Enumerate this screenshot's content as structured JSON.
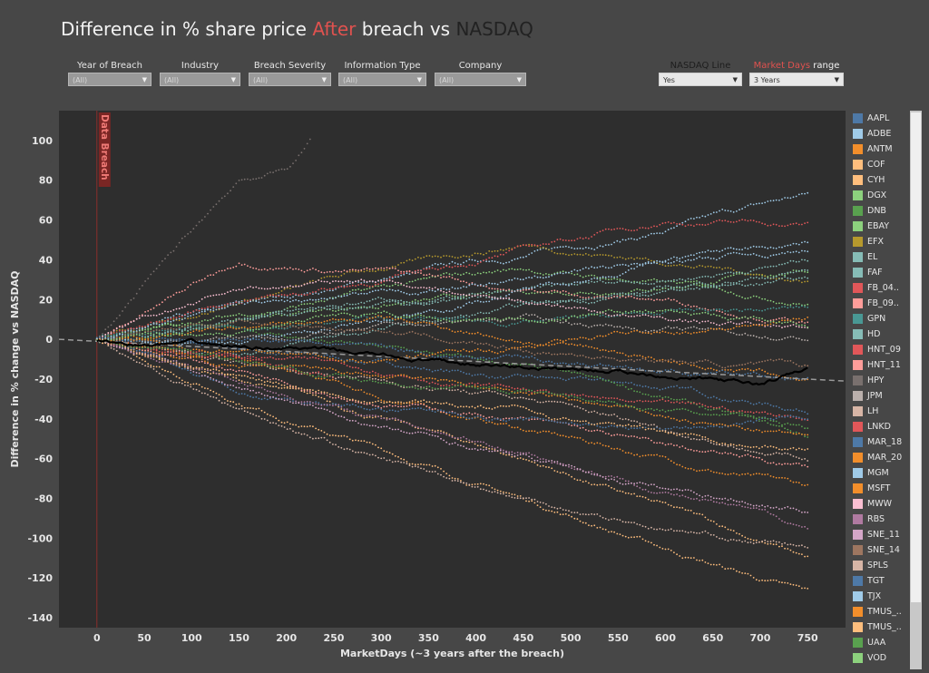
{
  "title": {
    "part1": "Difference in % share price",
    "part2": "After",
    "part3": "breach",
    "part4": "vs",
    "part5": "NASDAQ"
  },
  "filters": [
    {
      "label": "Year of Breach",
      "value": "(All)"
    },
    {
      "label": "Industry",
      "value": "(All)"
    },
    {
      "label": "Breach Severity",
      "value": "(All)"
    },
    {
      "label": "Information Type",
      "value": "(All)"
    },
    {
      "label": "Company",
      "value": "(All)"
    }
  ],
  "nasdaq_filter": {
    "label": "NASDAQ Line",
    "value": "Yes"
  },
  "range_filter": {
    "label_red": "Market Days",
    "label_white": " range",
    "value": "3 Years"
  },
  "colors": {
    "background": "#474747",
    "plot_bg": "#2e2e2e",
    "accent_red": "#e0524f",
    "nasdaq_line": "#000000",
    "trend_line": "#9a9a9a"
  },
  "icons": {
    "dropdown": "chevron-down-icon"
  },
  "chart_data": {
    "type": "scatter",
    "title": "Difference in % share price After breach vs NASDAQ",
    "xlabel": "MarketDays (~3 years after the breach)",
    "ylabel": "Difference in % change vs NASDAQ",
    "xlim": [
      -40,
      790
    ],
    "ylim": [
      -145,
      115
    ],
    "x_ticks": [
      0,
      50,
      100,
      150,
      200,
      250,
      300,
      350,
      400,
      450,
      500,
      550,
      600,
      650,
      700,
      750
    ],
    "y_ticks": [
      100,
      80,
      60,
      40,
      20,
      0,
      -20,
      -40,
      -60,
      -80,
      -100,
      -120,
      -140
    ],
    "grid": false,
    "legend_position": "right",
    "annotation": {
      "text": "Data Breach",
      "x": 0
    },
    "nasdaq_series": {
      "values_at_x": [
        [
          0,
          -1
        ],
        [
          50,
          -3
        ],
        [
          100,
          -2
        ],
        [
          150,
          -4
        ],
        [
          200,
          -4
        ],
        [
          250,
          -6
        ],
        [
          300,
          -8
        ],
        [
          350,
          -11
        ],
        [
          400,
          -13
        ],
        [
          450,
          -14
        ],
        [
          500,
          -15
        ],
        [
          550,
          -16
        ],
        [
          600,
          -18
        ],
        [
          650,
          -20
        ],
        [
          700,
          -23
        ],
        [
          750,
          -15
        ]
      ]
    },
    "trend_line": {
      "x": [
        -40,
        790
      ],
      "y": [
        0,
        -21
      ]
    },
    "series": [
      {
        "name": "AAPL",
        "color": "#4e79a7",
        "values_at_x": [
          [
            0,
            0
          ],
          [
            150,
            -5
          ],
          [
            300,
            -12
          ],
          [
            450,
            -20
          ],
          [
            600,
            -25
          ],
          [
            750,
            -35
          ]
        ]
      },
      {
        "name": "ADBE",
        "color": "#a0cbe8",
        "values_at_x": [
          [
            0,
            0
          ],
          [
            150,
            15
          ],
          [
            300,
            30
          ],
          [
            450,
            42
          ],
          [
            600,
            55
          ],
          [
            750,
            72
          ]
        ]
      },
      {
        "name": "ANTM",
        "color": "#f28e2b",
        "values_at_x": [
          [
            0,
            0
          ],
          [
            150,
            -10
          ],
          [
            300,
            -30
          ],
          [
            450,
            -45
          ],
          [
            600,
            -60
          ],
          [
            750,
            -75
          ]
        ]
      },
      {
        "name": "COF",
        "color": "#ffbe7d",
        "values_at_x": [
          [
            0,
            0
          ],
          [
            150,
            -30
          ],
          [
            300,
            -55
          ],
          [
            450,
            -80
          ],
          [
            600,
            -105
          ],
          [
            750,
            -128
          ]
        ]
      },
      {
        "name": "CYH",
        "color": "#ffbe7d",
        "values_at_x": [
          [
            0,
            0
          ],
          [
            150,
            -20
          ],
          [
            300,
            -40
          ],
          [
            450,
            -60
          ],
          [
            600,
            -85
          ],
          [
            750,
            -110
          ]
        ]
      },
      {
        "name": "DGX",
        "color": "#8cd17d",
        "values_at_x": [
          [
            0,
            0
          ],
          [
            150,
            10
          ],
          [
            300,
            18
          ],
          [
            450,
            22
          ],
          [
            600,
            28
          ],
          [
            750,
            35
          ]
        ]
      },
      {
        "name": "DNB",
        "color": "#59a14f",
        "values_at_x": [
          [
            0,
            0
          ],
          [
            150,
            5
          ],
          [
            300,
            -5
          ],
          [
            450,
            -15
          ],
          [
            600,
            -30
          ],
          [
            750,
            -50
          ]
        ]
      },
      {
        "name": "EBAY",
        "color": "#8cd17d",
        "values_at_x": [
          [
            0,
            0
          ],
          [
            150,
            12
          ],
          [
            300,
            25
          ],
          [
            450,
            35
          ],
          [
            600,
            28
          ],
          [
            750,
            20
          ]
        ]
      },
      {
        "name": "EFX",
        "color": "#b6992d",
        "values_at_x": [
          [
            0,
            0
          ],
          [
            150,
            20
          ],
          [
            300,
            35
          ],
          [
            450,
            48
          ],
          [
            600,
            40
          ],
          [
            750,
            30
          ]
        ]
      },
      {
        "name": "EL",
        "color": "#86bcb6",
        "values_at_x": [
          [
            0,
            0
          ],
          [
            150,
            8
          ],
          [
            300,
            15
          ],
          [
            450,
            22
          ],
          [
            600,
            30
          ],
          [
            750,
            40
          ]
        ]
      },
      {
        "name": "FAF",
        "color": "#86bcb6",
        "values_at_x": [
          [
            0,
            0
          ],
          [
            150,
            -5
          ],
          [
            300,
            5
          ],
          [
            450,
            15
          ],
          [
            600,
            25
          ],
          [
            750,
            35
          ]
        ]
      },
      {
        "name": "FB_04..",
        "color": "#e15759",
        "values_at_x": [
          [
            0,
            0
          ],
          [
            150,
            20
          ],
          [
            300,
            30
          ],
          [
            450,
            45
          ],
          [
            600,
            60
          ],
          [
            750,
            58
          ]
        ]
      },
      {
        "name": "FB_09..",
        "color": "#ff9d9a",
        "values_at_x": [
          [
            0,
            0
          ],
          [
            150,
            40
          ],
          [
            300,
            35
          ],
          [
            450,
            25
          ],
          [
            600,
            20
          ],
          [
            750,
            10
          ]
        ]
      },
      {
        "name": "GPN",
        "color": "#499894",
        "values_at_x": [
          [
            0,
            0
          ],
          [
            150,
            5
          ],
          [
            300,
            10
          ],
          [
            450,
            8
          ],
          [
            600,
            12
          ],
          [
            750,
            15
          ]
        ]
      },
      {
        "name": "HD",
        "color": "#86bcb6",
        "values_at_x": [
          [
            0,
            0
          ],
          [
            150,
            10
          ],
          [
            300,
            20
          ],
          [
            450,
            18
          ],
          [
            600,
            25
          ],
          [
            750,
            30
          ]
        ]
      },
      {
        "name": "HNT_09",
        "color": "#e15759",
        "values_at_x": [
          [
            0,
            0
          ],
          [
            150,
            -8
          ],
          [
            300,
            -15
          ],
          [
            450,
            -25
          ],
          [
            600,
            -35
          ],
          [
            750,
            -40
          ]
        ]
      },
      {
        "name": "HNT_11",
        "color": "#ff9d9a",
        "values_at_x": [
          [
            0,
            0
          ],
          [
            150,
            -15
          ],
          [
            300,
            -30
          ],
          [
            450,
            -40
          ],
          [
            600,
            -55
          ],
          [
            750,
            -65
          ]
        ]
      },
      {
        "name": "HPY",
        "color": "#79706e",
        "values_at_x": [
          [
            0,
            0
          ],
          [
            150,
            80
          ],
          [
            200,
            85
          ],
          [
            225,
            100
          ]
        ]
      },
      {
        "name": "JPM",
        "color": "#bab0ac",
        "values_at_x": [
          [
            0,
            0
          ],
          [
            150,
            0
          ],
          [
            300,
            5
          ],
          [
            450,
            10
          ],
          [
            600,
            5
          ],
          [
            750,
            0
          ]
        ]
      },
      {
        "name": "LH",
        "color": "#d7b5a6",
        "values_at_x": [
          [
            0,
            0
          ],
          [
            150,
            -12
          ],
          [
            300,
            -20
          ],
          [
            450,
            -30
          ],
          [
            600,
            -45
          ],
          [
            750,
            -60
          ]
        ]
      },
      {
        "name": "LNKD",
        "color": "#e15759",
        "values_at_x": [
          [
            0,
            0
          ],
          [
            150,
            -10
          ],
          [
            250,
            -20
          ]
        ]
      },
      {
        "name": "MAR_18",
        "color": "#4e79a7",
        "values_at_x": [
          [
            0,
            0
          ],
          [
            150,
            -25
          ],
          [
            300,
            -35
          ],
          [
            450,
            -40
          ],
          [
            600,
            -45
          ],
          [
            750,
            -40
          ]
        ]
      },
      {
        "name": "MAR_20",
        "color": "#f28e2b",
        "values_at_x": [
          [
            0,
            0
          ],
          [
            150,
            -15
          ],
          [
            300,
            -20
          ],
          [
            450,
            -28
          ],
          [
            600,
            -40
          ],
          [
            750,
            -50
          ]
        ]
      },
      {
        "name": "MGM",
        "color": "#a0cbe8",
        "values_at_x": [
          [
            0,
            0
          ],
          [
            150,
            0
          ],
          [
            300,
            10
          ],
          [
            450,
            25
          ],
          [
            600,
            40
          ],
          [
            750,
            50
          ]
        ]
      },
      {
        "name": "MSFT",
        "color": "#f28e2b",
        "values_at_x": [
          [
            0,
            0
          ],
          [
            150,
            5
          ],
          [
            300,
            10
          ],
          [
            450,
            0
          ],
          [
            600,
            -10
          ],
          [
            750,
            -20
          ]
        ]
      },
      {
        "name": "MWW",
        "color": "#fabfd2",
        "values_at_x": [
          [
            0,
            0
          ],
          [
            150,
            25
          ],
          [
            300,
            30
          ],
          [
            450,
            20
          ],
          [
            600,
            10
          ],
          [
            750,
            5
          ]
        ]
      },
      {
        "name": "RBS",
        "color": "#b07aa1",
        "values_at_x": [
          [
            0,
            0
          ],
          [
            150,
            -20
          ],
          [
            300,
            -40
          ],
          [
            450,
            -55
          ],
          [
            600,
            -75
          ],
          [
            750,
            -95
          ]
        ]
      },
      {
        "name": "SNE_11",
        "color": "#d4a6c8",
        "values_at_x": [
          [
            0,
            0
          ],
          [
            150,
            -25
          ],
          [
            300,
            -45
          ],
          [
            450,
            -60
          ],
          [
            600,
            -75
          ],
          [
            750,
            -85
          ]
        ]
      },
      {
        "name": "SNE_14",
        "color": "#9d7660",
        "values_at_x": [
          [
            0,
            0
          ],
          [
            150,
            10
          ],
          [
            300,
            5
          ],
          [
            450,
            -5
          ],
          [
            600,
            -10
          ],
          [
            750,
            -15
          ]
        ]
      },
      {
        "name": "SPLS",
        "color": "#d7b5a6",
        "values_at_x": [
          [
            0,
            0
          ],
          [
            150,
            -35
          ],
          [
            300,
            -60
          ],
          [
            450,
            -80
          ],
          [
            600,
            -95
          ],
          [
            750,
            -105
          ]
        ]
      },
      {
        "name": "TGT",
        "color": "#4e79a7",
        "values_at_x": [
          [
            0,
            0
          ],
          [
            150,
            0
          ],
          [
            300,
            -5
          ],
          [
            450,
            -10
          ],
          [
            600,
            -15
          ],
          [
            750,
            -20
          ]
        ]
      },
      {
        "name": "TJX",
        "color": "#a0cbe8",
        "values_at_x": [
          [
            0,
            0
          ],
          [
            150,
            15
          ],
          [
            300,
            20
          ],
          [
            450,
            30
          ],
          [
            600,
            38
          ],
          [
            750,
            45
          ]
        ]
      },
      {
        "name": "TMUS_..",
        "color": "#f28e2b",
        "values_at_x": [
          [
            0,
            0
          ],
          [
            150,
            -5
          ],
          [
            300,
            -10
          ],
          [
            450,
            -5
          ],
          [
            600,
            5
          ],
          [
            750,
            10
          ]
        ]
      },
      {
        "name": "TMUS_..",
        "color": "#ffbe7d",
        "values_at_x": [
          [
            0,
            0
          ],
          [
            150,
            -18
          ],
          [
            300,
            -28
          ],
          [
            450,
            -35
          ],
          [
            600,
            -48
          ],
          [
            750,
            -55
          ]
        ]
      },
      {
        "name": "UAA",
        "color": "#59a14f",
        "values_at_x": [
          [
            0,
            0
          ],
          [
            150,
            -10
          ],
          [
            300,
            -20
          ],
          [
            450,
            -25
          ],
          [
            600,
            -35
          ],
          [
            750,
            -45
          ]
        ]
      },
      {
        "name": "VOD",
        "color": "#8cd17d",
        "values_at_x": [
          [
            0,
            0
          ],
          [
            150,
            5
          ],
          [
            300,
            12
          ],
          [
            450,
            10
          ],
          [
            600,
            15
          ],
          [
            750,
            5
          ]
        ]
      }
    ]
  }
}
